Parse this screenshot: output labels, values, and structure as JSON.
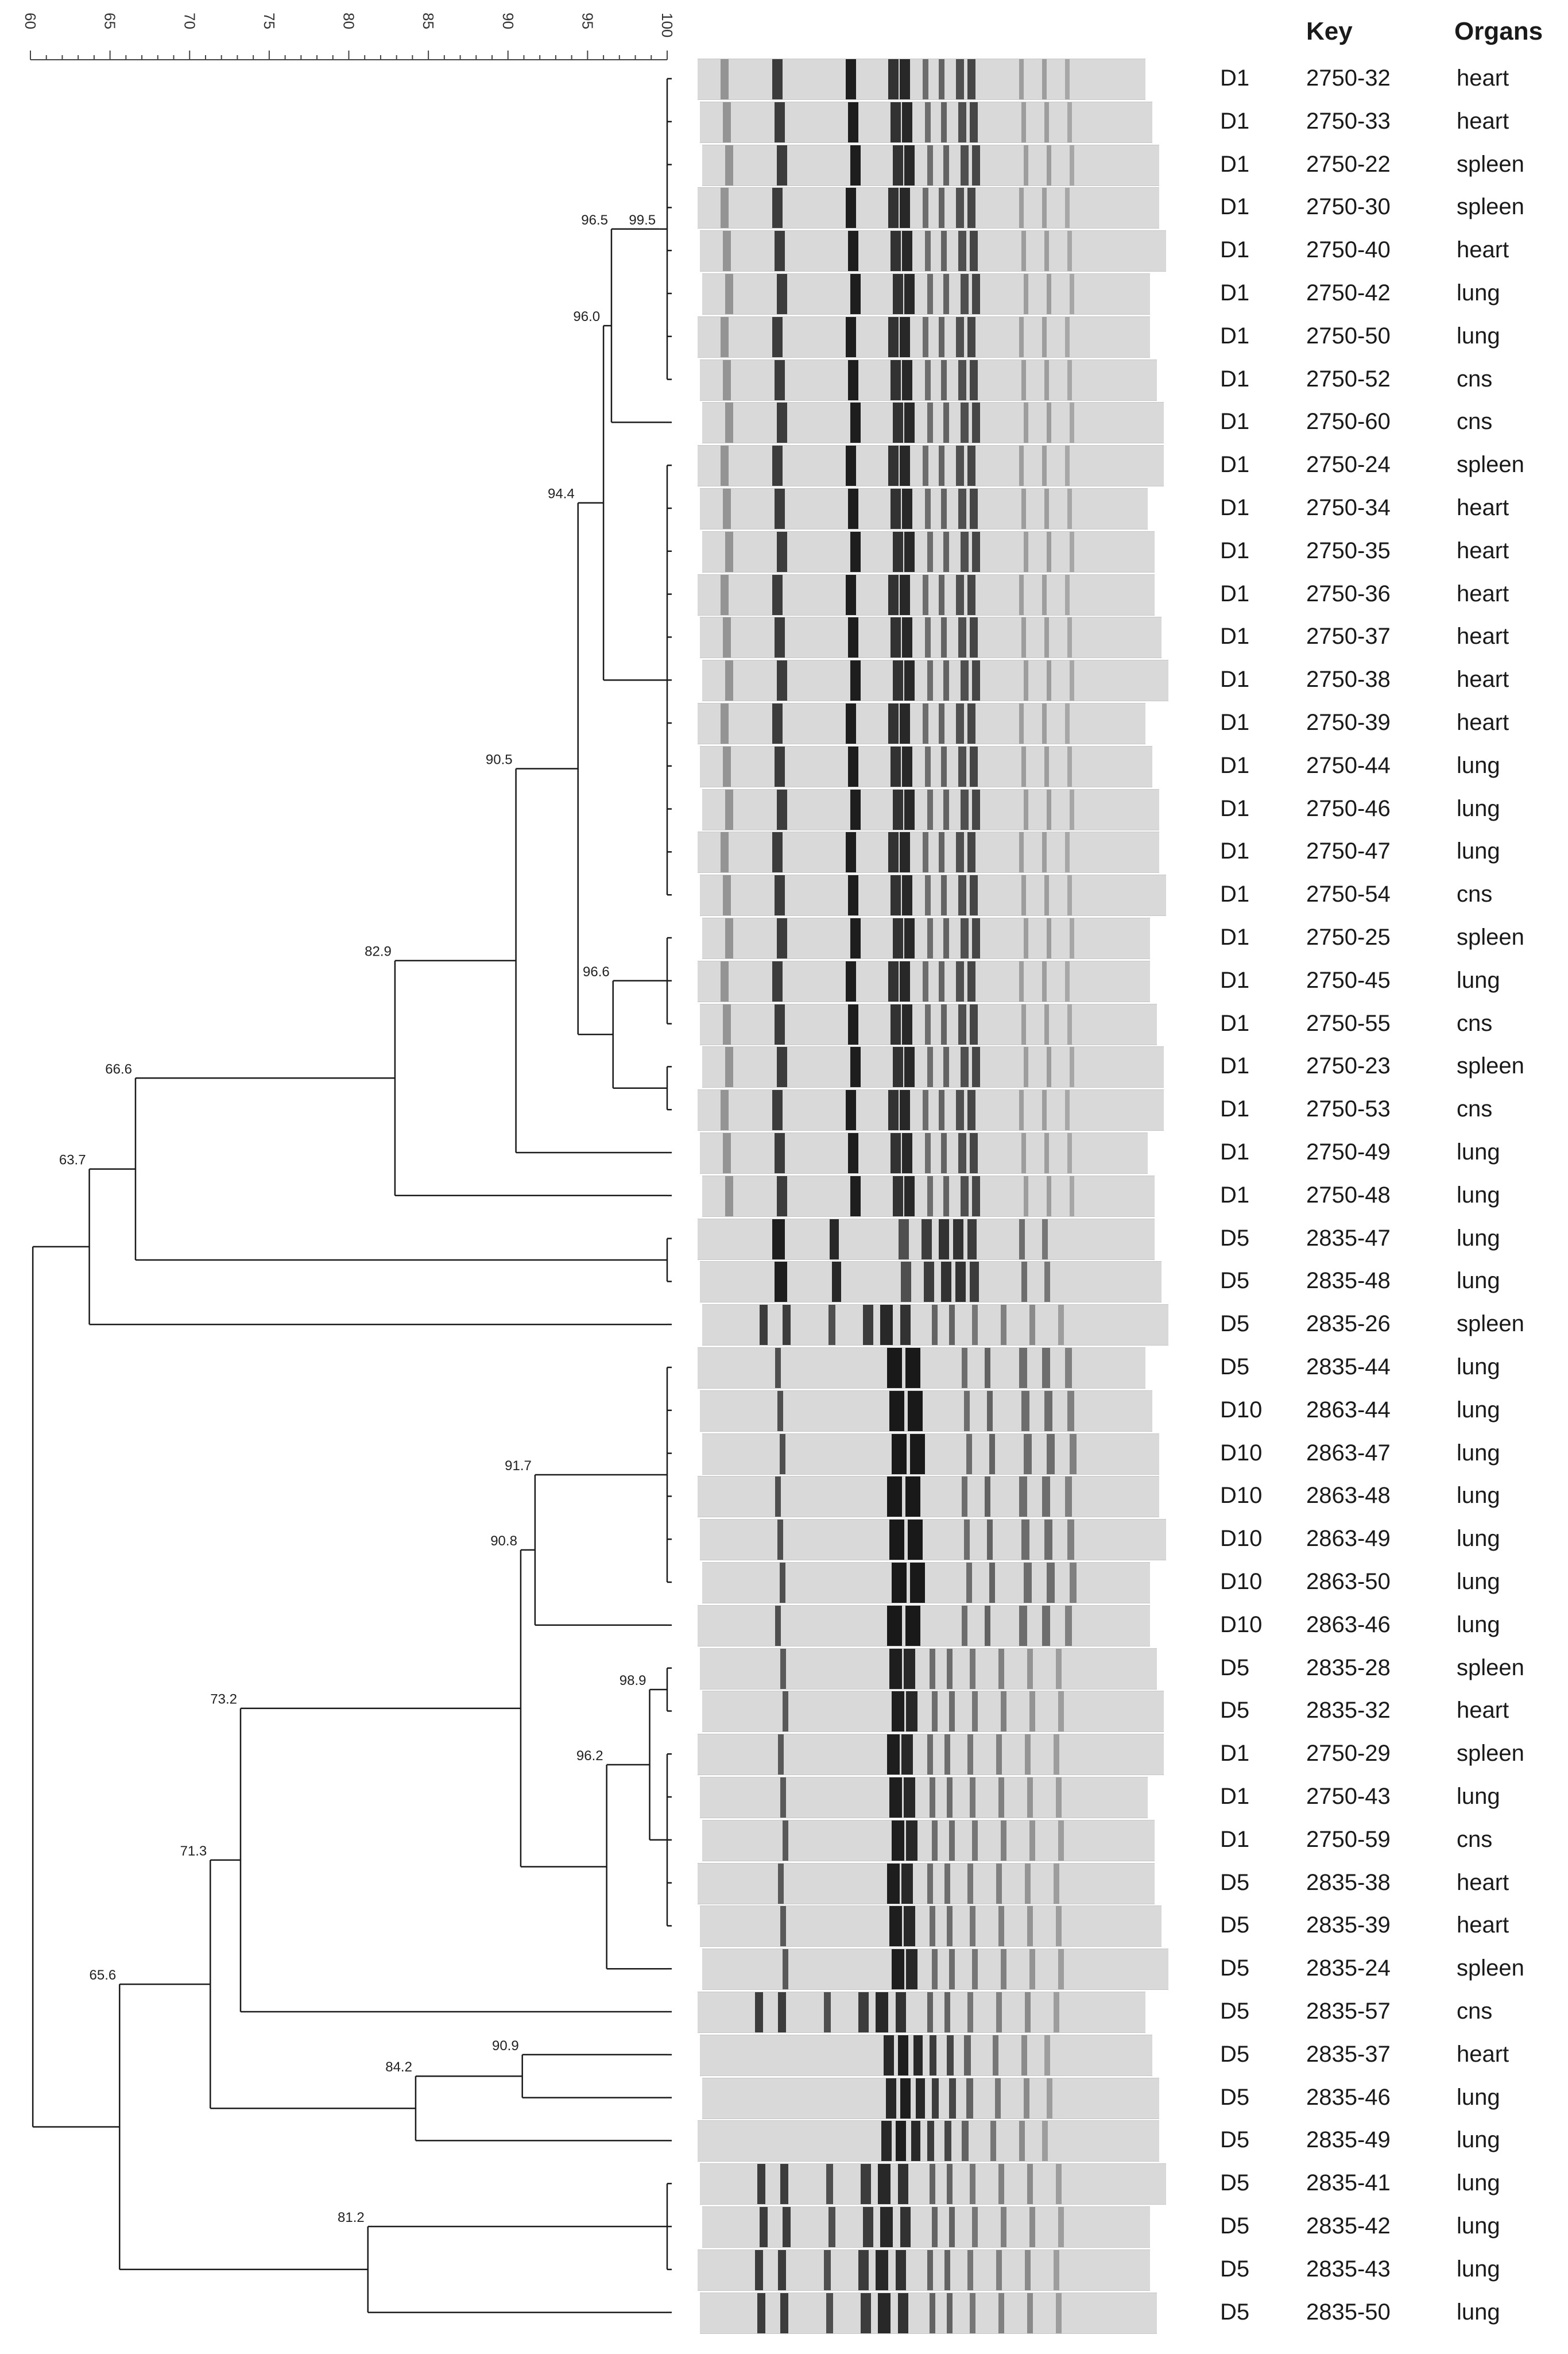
{
  "header": {
    "key_label": "Key",
    "organs_label": "Organs"
  },
  "chart_data": {
    "type": "dendrogram",
    "scale": {
      "min": 60,
      "max": 100,
      "ticks": [
        "60",
        "65",
        "70",
        "75",
        "80",
        "85",
        "90",
        "95",
        "100"
      ]
    },
    "nodes": [
      {
        "id": "n995",
        "label": "99.5",
        "similarity": 99.5
      },
      {
        "id": "n965",
        "label": "96.5",
        "similarity": 96.5
      },
      {
        "id": "n960",
        "label": "96.0",
        "similarity": 96.0
      },
      {
        "id": "n944",
        "label": "94.4",
        "similarity": 94.4
      },
      {
        "id": "n966",
        "label": "96.6",
        "similarity": 96.6
      },
      {
        "id": "n905",
        "label": "90.5",
        "similarity": 90.5
      },
      {
        "id": "n829",
        "label": "82.9",
        "similarity": 82.9
      },
      {
        "id": "n666",
        "label": "66.6",
        "similarity": 66.6
      },
      {
        "id": "n637",
        "label": "63.7",
        "similarity": 63.7
      },
      {
        "id": "n917",
        "label": "91.7",
        "similarity": 91.7
      },
      {
        "id": "n989",
        "label": "98.9",
        "similarity": 98.9
      },
      {
        "id": "n962",
        "label": "96.2",
        "similarity": 96.2
      },
      {
        "id": "n908",
        "label": "90.8",
        "similarity": 90.8
      },
      {
        "id": "n732",
        "label": "73.2",
        "similarity": 73.2
      },
      {
        "id": "n909",
        "label": "90.9",
        "similarity": 90.9
      },
      {
        "id": "n842",
        "label": "84.2",
        "similarity": 84.2
      },
      {
        "id": "n713",
        "label": "71.3",
        "similarity": 71.3
      },
      {
        "id": "n812",
        "label": "81.2",
        "similarity": 81.2
      },
      {
        "id": "n656",
        "label": "65.6",
        "similarity": 65.6
      }
    ],
    "rows": [
      {
        "day": "D1",
        "key": "2750-32",
        "organ": "heart"
      },
      {
        "day": "D1",
        "key": "2750-33",
        "organ": "heart"
      },
      {
        "day": "D1",
        "key": "2750-22",
        "organ": "spleen"
      },
      {
        "day": "D1",
        "key": "2750-30",
        "organ": "spleen"
      },
      {
        "day": "D1",
        "key": "2750-40",
        "organ": "heart"
      },
      {
        "day": "D1",
        "key": "2750-42",
        "organ": "lung"
      },
      {
        "day": "D1",
        "key": "2750-50",
        "organ": "lung"
      },
      {
        "day": "D1",
        "key": "2750-52",
        "organ": "cns"
      },
      {
        "day": "D1",
        "key": "2750-60",
        "organ": "cns"
      },
      {
        "day": "D1",
        "key": "2750-24",
        "organ": "spleen"
      },
      {
        "day": "D1",
        "key": "2750-34",
        "organ": "heart"
      },
      {
        "day": "D1",
        "key": "2750-35",
        "organ": "heart"
      },
      {
        "day": "D1",
        "key": "2750-36",
        "organ": "heart"
      },
      {
        "day": "D1",
        "key": "2750-37",
        "organ": "heart"
      },
      {
        "day": "D1",
        "key": "2750-38",
        "organ": "heart"
      },
      {
        "day": "D1",
        "key": "2750-39",
        "organ": "heart"
      },
      {
        "day": "D1",
        "key": "2750-44",
        "organ": "lung"
      },
      {
        "day": "D1",
        "key": "2750-46",
        "organ": "lung"
      },
      {
        "day": "D1",
        "key": "2750-47",
        "organ": "lung"
      },
      {
        "day": "D1",
        "key": "2750-54",
        "organ": "cns"
      },
      {
        "day": "D1",
        "key": "2750-25",
        "organ": "spleen"
      },
      {
        "day": "D1",
        "key": "2750-45",
        "organ": "lung"
      },
      {
        "day": "D1",
        "key": "2750-55",
        "organ": "cns"
      },
      {
        "day": "D1",
        "key": "2750-23",
        "organ": "spleen"
      },
      {
        "day": "D1",
        "key": "2750-53",
        "organ": "cns"
      },
      {
        "day": "D1",
        "key": "2750-49",
        "organ": "lung"
      },
      {
        "day": "D1",
        "key": "2750-48",
        "organ": "lung"
      },
      {
        "day": "D5",
        "key": "2835-47",
        "organ": "lung"
      },
      {
        "day": "D5",
        "key": "2835-48",
        "organ": "lung"
      },
      {
        "day": "D5",
        "key": "2835-26",
        "organ": "spleen"
      },
      {
        "day": "D5",
        "key": "2835-44",
        "organ": "lung"
      },
      {
        "day": "D10",
        "key": "2863-44",
        "organ": "lung"
      },
      {
        "day": "D10",
        "key": "2863-47",
        "organ": "lung"
      },
      {
        "day": "D10",
        "key": "2863-48",
        "organ": "lung"
      },
      {
        "day": "D10",
        "key": "2863-49",
        "organ": "lung"
      },
      {
        "day": "D10",
        "key": "2863-50",
        "organ": "lung"
      },
      {
        "day": "D10",
        "key": "2863-46",
        "organ": "lung"
      },
      {
        "day": "D5",
        "key": "2835-28",
        "organ": "spleen"
      },
      {
        "day": "D5",
        "key": "2835-32",
        "organ": "heart"
      },
      {
        "day": "D1",
        "key": "2750-29",
        "organ": "spleen"
      },
      {
        "day": "D1",
        "key": "2750-43",
        "organ": "lung"
      },
      {
        "day": "D1",
        "key": "2750-59",
        "organ": "cns"
      },
      {
        "day": "D5",
        "key": "2835-38",
        "organ": "heart"
      },
      {
        "day": "D5",
        "key": "2835-39",
        "organ": "heart"
      },
      {
        "day": "D5",
        "key": "2835-24",
        "organ": "spleen"
      },
      {
        "day": "D5",
        "key": "2835-57",
        "organ": "cns"
      },
      {
        "day": "D5",
        "key": "2835-37",
        "organ": "heart"
      },
      {
        "day": "D5",
        "key": "2835-46",
        "organ": "lung"
      },
      {
        "day": "D5",
        "key": "2835-49",
        "organ": "lung"
      },
      {
        "day": "D5",
        "key": "2835-41",
        "organ": "lung"
      },
      {
        "day": "D5",
        "key": "2835-42",
        "organ": "lung"
      },
      {
        "day": "D5",
        "key": "2835-43",
        "organ": "lung"
      },
      {
        "day": "D5",
        "key": "2835-50",
        "organ": "lung"
      }
    ]
  }
}
